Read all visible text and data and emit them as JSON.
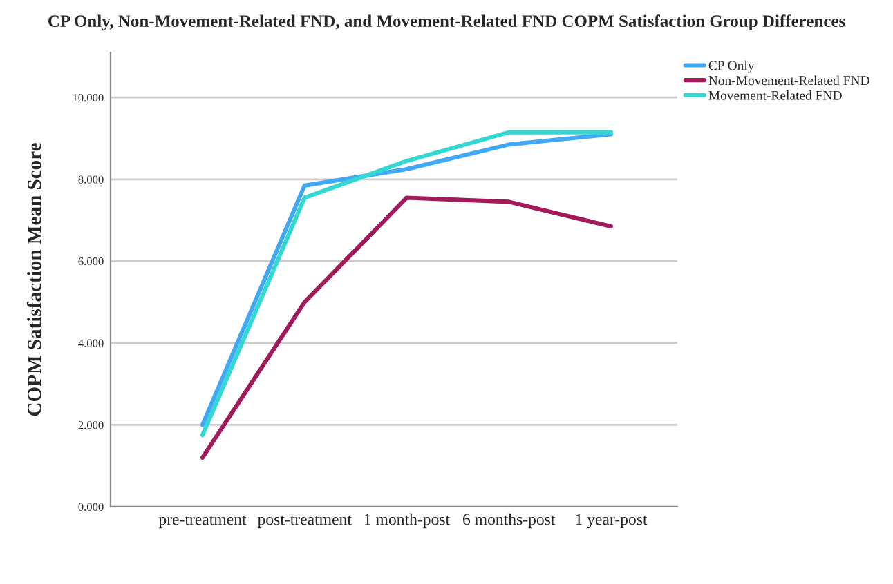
{
  "chart_data": {
    "type": "line",
    "title": "CP Only, Non-Movement-Related FND, and Movement-Related FND COPM Satisfaction Group Differences",
    "ylabel": "COPM Satisfaction Mean Score",
    "categories": [
      "pre-treatment",
      "post-treatment",
      "1 month-post",
      "6 months-post",
      "1 year-post"
    ],
    "series": [
      {
        "name": "CP Only",
        "color": "#41a8f5",
        "values": [
          2.0,
          7.85,
          8.25,
          8.85,
          9.1
        ]
      },
      {
        "name": "Non-Movement-Related FND",
        "color": "#a11a5a",
        "values": [
          1.2,
          5.0,
          7.55,
          7.45,
          6.85
        ]
      },
      {
        "name": "Movement-Related FND",
        "color": "#34d8d2",
        "values": [
          1.75,
          7.55,
          8.45,
          9.15,
          9.15
        ]
      }
    ],
    "ylim": [
      0,
      11.1
    ],
    "yticks": [
      {
        "value": 0,
        "label": "0.000"
      },
      {
        "value": 2,
        "label": "2.000"
      },
      {
        "value": 4,
        "label": "4.000"
      },
      {
        "value": 6,
        "label": "6.000"
      },
      {
        "value": 8,
        "label": "8.000"
      },
      {
        "value": 10,
        "label": "10.000"
      }
    ],
    "grid": "y",
    "legend": "top right"
  }
}
